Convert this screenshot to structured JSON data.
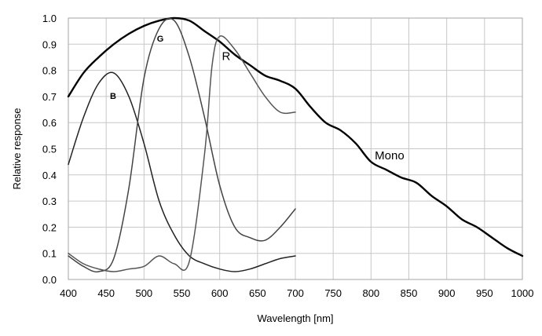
{
  "chart_data": {
    "type": "line",
    "xlabel": "Wavelength [nm]",
    "ylabel": "Relative response",
    "xlim": [
      400,
      1000
    ],
    "ylim": [
      0,
      1.0
    ],
    "x_ticks": [
      400,
      450,
      500,
      550,
      600,
      650,
      700,
      750,
      800,
      850,
      900,
      950,
      1000
    ],
    "y_ticks": [
      0.0,
      0.1,
      0.2,
      0.3,
      0.4,
      0.5,
      0.6,
      0.7,
      0.8,
      0.9,
      1.0
    ],
    "x_tick_labels": [
      "400",
      "450",
      "500",
      "550",
      "600",
      "650",
      "700",
      "750",
      "800",
      "850",
      "900",
      "950",
      "1000"
    ],
    "y_tick_labels": [
      "0.0",
      "0.1",
      "0.2",
      "0.3",
      "0.4",
      "0.5",
      "0.6",
      "0.7",
      "0.8",
      "0.9",
      "1.0"
    ],
    "grid": true,
    "series": [
      {
        "name": "Mono",
        "color": "#000000",
        "x": [
          400,
          420,
          440,
          460,
          480,
          500,
          520,
          540,
          560,
          580,
          600,
          620,
          640,
          660,
          680,
          700,
          720,
          740,
          760,
          780,
          800,
          820,
          840,
          860,
          880,
          900,
          920,
          940,
          960,
          980,
          1000
        ],
        "y": [
          0.7,
          0.79,
          0.85,
          0.9,
          0.94,
          0.97,
          0.99,
          1.0,
          0.99,
          0.95,
          0.91,
          0.86,
          0.82,
          0.78,
          0.76,
          0.73,
          0.66,
          0.6,
          0.57,
          0.52,
          0.45,
          0.42,
          0.39,
          0.37,
          0.32,
          0.28,
          0.23,
          0.2,
          0.16,
          0.12,
          0.09
        ]
      },
      {
        "name": "B",
        "color": "#222222",
        "x": [
          400,
          420,
          440,
          460,
          480,
          500,
          520,
          540,
          560,
          580,
          600,
          620,
          640,
          660,
          680,
          700
        ],
        "y": [
          0.44,
          0.62,
          0.75,
          0.79,
          0.7,
          0.52,
          0.3,
          0.17,
          0.09,
          0.06,
          0.04,
          0.03,
          0.04,
          0.06,
          0.08,
          0.09
        ]
      },
      {
        "name": "G",
        "color": "#444444",
        "x": [
          400,
          420,
          440,
          460,
          480,
          500,
          520,
          540,
          560,
          580,
          600,
          620,
          640,
          660,
          680,
          700
        ],
        "y": [
          0.09,
          0.05,
          0.03,
          0.08,
          0.35,
          0.77,
          0.96,
          0.99,
          0.85,
          0.62,
          0.36,
          0.2,
          0.16,
          0.15,
          0.2,
          0.27
        ]
      },
      {
        "name": "R",
        "color": "#555555",
        "x": [
          400,
          420,
          440,
          460,
          480,
          500,
          520,
          540,
          560,
          580,
          590,
          600,
          620,
          640,
          660,
          680,
          700
        ],
        "y": [
          0.1,
          0.06,
          0.04,
          0.03,
          0.04,
          0.05,
          0.09,
          0.06,
          0.07,
          0.48,
          0.82,
          0.93,
          0.88,
          0.79,
          0.7,
          0.64,
          0.64
        ]
      }
    ],
    "labels": [
      {
        "text": "Mono",
        "x": 805,
        "y": 0.46,
        "size": 15
      },
      {
        "text": "R",
        "x": 603,
        "y": 0.84,
        "size": 15
      },
      {
        "text": "G",
        "x": 517,
        "y": 0.91,
        "size": 11
      },
      {
        "text": "B",
        "x": 455,
        "y": 0.69,
        "size": 11
      }
    ]
  }
}
